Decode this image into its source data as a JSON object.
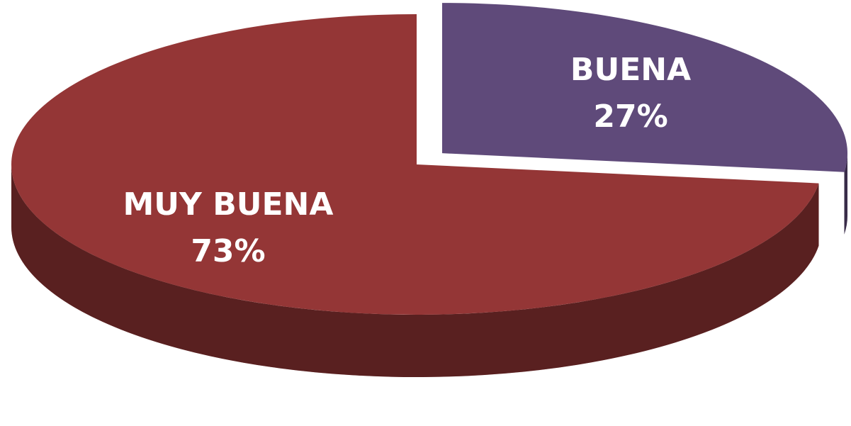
{
  "chart_data": {
    "type": "pie",
    "categories": [
      "BUENA",
      "MUY BUENA"
    ],
    "values": [
      27,
      73
    ],
    "value_labels": [
      "27%",
      "73%"
    ],
    "colors": [
      "#5f4a7a",
      "#943636"
    ],
    "explode": [
      true,
      false
    ]
  }
}
